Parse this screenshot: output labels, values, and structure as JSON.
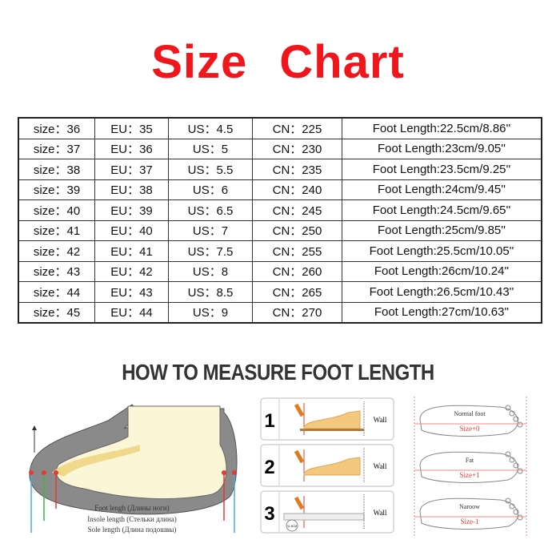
{
  "title": {
    "word1": "Size",
    "word2": "Chart"
  },
  "size_table": {
    "rows": [
      {
        "size": "size：36",
        "eu": "EU：35",
        "us": "US：4.5",
        "cn": "CN：225",
        "foot": "Foot Length:22.5cm/8.86''"
      },
      {
        "size": "size：37",
        "eu": "EU：36",
        "us": "US：5",
        "cn": "CN：230",
        "foot": "Foot Length:23cm/9.05''"
      },
      {
        "size": "size：38",
        "eu": "EU：37",
        "us": "US：5.5",
        "cn": "CN：235",
        "foot": "Foot Length:23.5cm/9.25''"
      },
      {
        "size": "size：39",
        "eu": "EU：38",
        "us": "US：6",
        "cn": "CN：240",
        "foot": "Foot Length:24cm/9.45''"
      },
      {
        "size": "size：40",
        "eu": "EU：39",
        "us": "US：6.5",
        "cn": "CN：245",
        "foot": "Foot Length:24.5cm/9.65''"
      },
      {
        "size": "size：41",
        "eu": "EU：40",
        "us": "US：7",
        "cn": "CN：250",
        "foot": "Foot Length:25cm/9.85''"
      },
      {
        "size": "size：42",
        "eu": "EU：41",
        "us": "US：7.5",
        "cn": "CN：255",
        "foot": "Foot Length:25.5cm/10.05''"
      },
      {
        "size": "size：43",
        "eu": "EU：42",
        "us": "US：8",
        "cn": "CN：260",
        "foot": "Foot Length:26cm/10.24''"
      },
      {
        "size": "size：44",
        "eu": "EU：43",
        "us": "US：8.5",
        "cn": "CN：265",
        "foot": "Foot Length:26.5cm/10.43''"
      },
      {
        "size": "size：45",
        "eu": "EU：44",
        "us": "US：9",
        "cn": "CN：270",
        "foot": "Foot Length:27cm/10.63''"
      }
    ]
  },
  "howto": {
    "heading": "HOW TO MEASURE FOOT LENGTH",
    "shoe_labels": {
      "foot": "Foot lengh (Длины ноги)",
      "insole": "Insole length (Стельки длина)",
      "sole": "Sole length (Длина подошвы)"
    },
    "steps": [
      {
        "num": "1",
        "wall": "Wall"
      },
      {
        "num": "2",
        "wall": "Wall"
      },
      {
        "num": "3",
        "wall": "Wall",
        "ruler_reading": "11.5CM"
      }
    ],
    "foot_types": [
      {
        "name": "Normal foot",
        "size": "Size+0"
      },
      {
        "name": "Fat",
        "size": "Size+1"
      },
      {
        "name": "Naroow",
        "size": "Size-1"
      }
    ]
  },
  "colors": {
    "title_red": "#f0161c",
    "foot_fill": "#fbf7d6",
    "sole_gray": "#8a8a8a",
    "accent_red": "#e53935"
  }
}
